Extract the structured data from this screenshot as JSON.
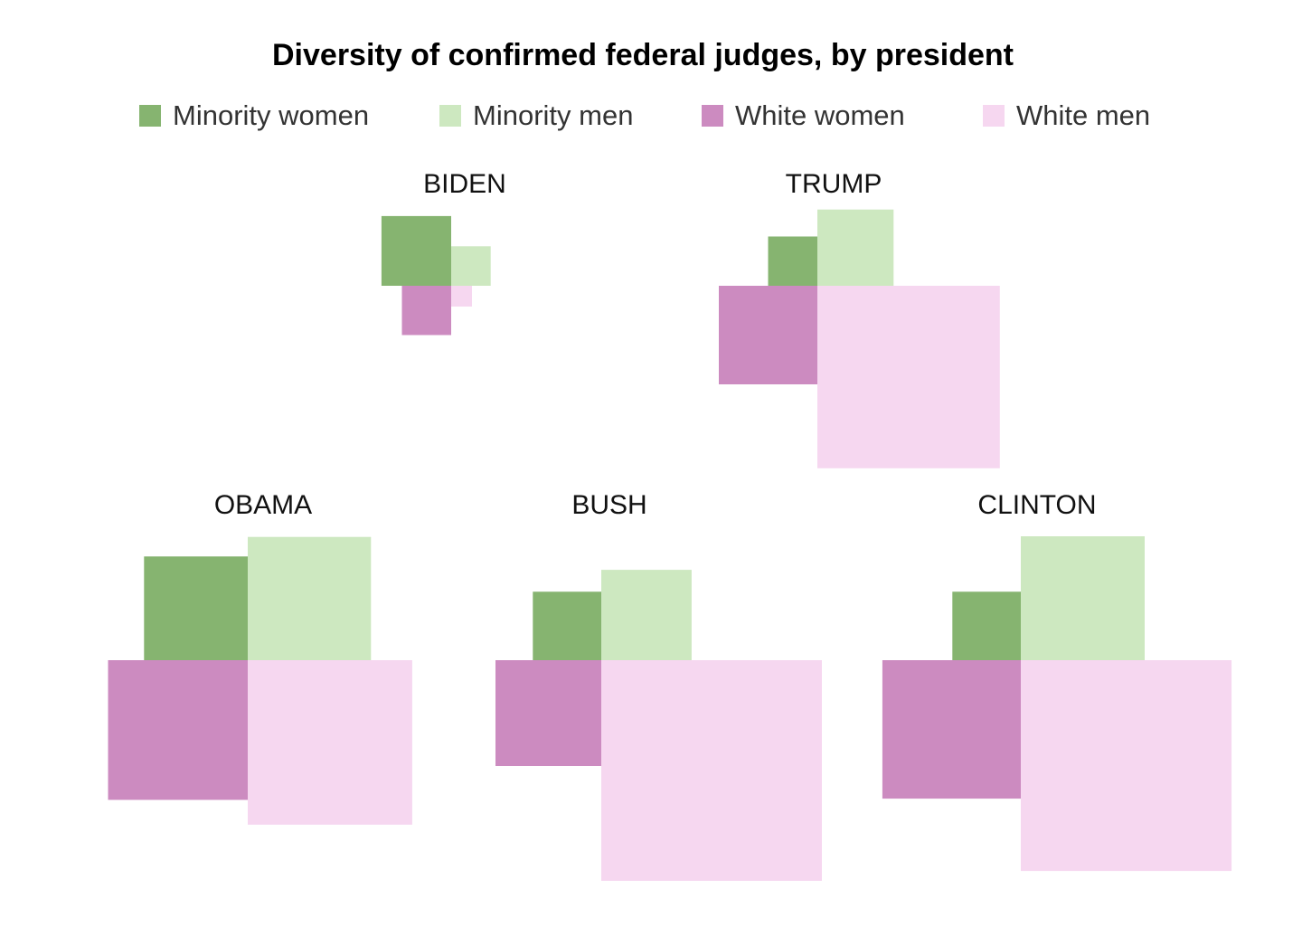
{
  "title": "Diversity of confirmed federal judges, by president",
  "legend": [
    {
      "label": "Minority women",
      "color": "#86b470"
    },
    {
      "label": "Minority men",
      "color": "#cde8c0"
    },
    {
      "label": "White women",
      "color": "#cc8bc0"
    },
    {
      "label": "White men",
      "color": "#f6d7f0"
    }
  ],
  "chart_data": {
    "type": "area",
    "encoding": "Each category is drawn as a square whose area is proportional to the number of confirmed judges",
    "series": [
      "Minority women",
      "Minority men",
      "White women",
      "White men"
    ],
    "presidents": [
      {
        "name": "BIDEN",
        "values": [
          56,
          18,
          28,
          5
        ]
      },
      {
        "name": "TRUMP",
        "values": [
          28,
          67,
          112,
          384
        ]
      },
      {
        "name": "OBAMA",
        "values": [
          124,
          175,
          225,
          312
        ]
      },
      {
        "name": "BUSH",
        "values": [
          54,
          94,
          129,
          561
        ]
      },
      {
        "name": "CLINTON",
        "values": [
          54,
          177,
          221,
          512
        ]
      }
    ]
  }
}
